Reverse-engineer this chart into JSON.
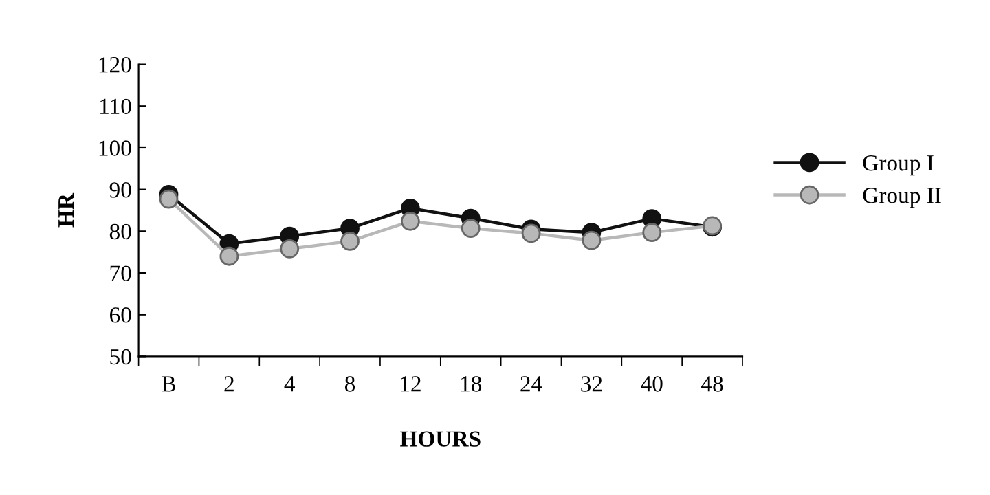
{
  "chart_data": {
    "type": "line",
    "xlabel": "HOURS",
    "ylabel": "HR",
    "categories": [
      "B",
      "2",
      "4",
      "8",
      "12",
      "18",
      "24",
      "32",
      "40",
      "48"
    ],
    "series": [
      {
        "name": "Group I",
        "color": "#111111",
        "values": [
          88.8,
          77,
          78.8,
          80.7,
          85.5,
          83.1,
          80.5,
          79.7,
          83,
          81
        ]
      },
      {
        "name": "Group II",
        "color": "#b8b8b8",
        "values": [
          87.7,
          74,
          75.8,
          77.6,
          82.4,
          80.7,
          79.5,
          77.8,
          79.7,
          81.3
        ]
      }
    ],
    "ylim": [
      50,
      120
    ],
    "yticks": [
      50,
      60,
      70,
      80,
      90,
      100,
      110,
      120
    ],
    "grid": false,
    "legend": "right",
    "marker": "circle",
    "line_style": "solid"
  }
}
